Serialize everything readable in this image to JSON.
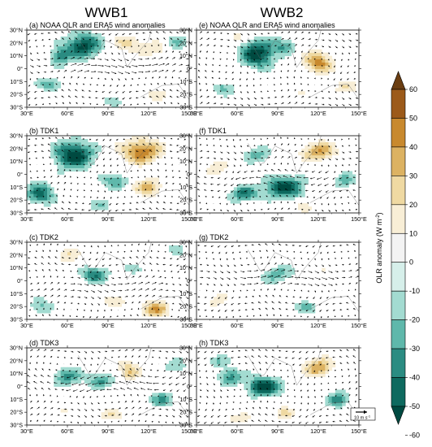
{
  "figure": {
    "column_titles": [
      "WWB1",
      "WWB2"
    ],
    "colorbar": {
      "title": "OLR anomaly (W m",
      "title_sup": "-2",
      "title_end": ")",
      "levels": [
        60,
        50,
        40,
        30,
        20,
        10,
        0,
        -10,
        -20,
        -30,
        -40,
        -50,
        -60
      ],
      "colors": [
        "#6b3e12",
        "#9c5a1a",
        "#c8892e",
        "#dcb262",
        "#efd9a2",
        "#f8eed6",
        "#f3f3f3",
        "#d6efea",
        "#a3dbd1",
        "#5fb8ab",
        "#2b8c82",
        "#0e6a5f",
        "#004a41"
      ]
    },
    "reference_vector": {
      "label": "10 m s"
    },
    "axes": {
      "x_ticks": [
        "30°E",
        "60°E",
        "90°E",
        "120°E",
        "150°E"
      ],
      "y_ticks": [
        "30°N",
        "20°N",
        "10°N",
        "0°",
        "10°S",
        "20°S",
        "30°S"
      ]
    }
  },
  "chart_data": [
    {
      "type": "heatmap",
      "panel": "a",
      "title": "(a) NOAA OLR and ERA5 wind anomalies",
      "xlim": [
        30,
        150
      ],
      "ylim": [
        -30,
        30
      ],
      "blobs": [
        [
          72,
          18,
          12,
          9,
          -55
        ],
        [
          55,
          10,
          8,
          7,
          -35
        ],
        [
          105,
          20,
          10,
          6,
          25
        ],
        [
          125,
          15,
          10,
          6,
          20
        ],
        [
          48,
          -12,
          9,
          5,
          -30
        ],
        [
          125,
          -20,
          8,
          5,
          15
        ],
        [
          95,
          -25,
          8,
          4,
          -20
        ],
        [
          140,
          20,
          8,
          6,
          -20
        ]
      ]
    },
    {
      "type": "heatmap",
      "panel": "b",
      "title": "(b) TDK1",
      "xlim": [
        30,
        150
      ],
      "ylim": [
        -30,
        30
      ],
      "blobs": [
        [
          65,
          15,
          14,
          10,
          -60
        ],
        [
          40,
          -15,
          10,
          8,
          -45
        ],
        [
          115,
          18,
          14,
          9,
          50
        ],
        [
          95,
          -5,
          10,
          6,
          -30
        ],
        [
          120,
          -10,
          10,
          6,
          35
        ],
        [
          85,
          -25,
          8,
          5,
          -20
        ],
        [
          140,
          10,
          8,
          6,
          -15
        ]
      ]
    },
    {
      "type": "heatmap",
      "panel": "c",
      "title": "(c) TDK2",
      "xlim": [
        30,
        150
      ],
      "ylim": [
        -30,
        30
      ],
      "blobs": [
        [
          80,
          5,
          10,
          6,
          -40
        ],
        [
          125,
          -22,
          10,
          6,
          40
        ],
        [
          40,
          -20,
          8,
          6,
          -25
        ],
        [
          60,
          20,
          8,
          6,
          20
        ],
        [
          110,
          10,
          8,
          5,
          -20
        ],
        [
          95,
          -15,
          8,
          5,
          20
        ],
        [
          140,
          25,
          6,
          5,
          -15
        ]
      ]
    },
    {
      "type": "heatmap",
      "panel": "d",
      "title": "(d) TDK3",
      "xlim": [
        30,
        150
      ],
      "ylim": [
        -30,
        30
      ],
      "blobs": [
        [
          60,
          8,
          10,
          7,
          -35
        ],
        [
          85,
          5,
          10,
          6,
          -30
        ],
        [
          105,
          12,
          8,
          7,
          30
        ],
        [
          130,
          -10,
          9,
          6,
          -30
        ],
        [
          55,
          -20,
          8,
          5,
          15
        ],
        [
          140,
          15,
          8,
          6,
          -20
        ],
        [
          90,
          -22,
          9,
          5,
          20
        ]
      ]
    },
    {
      "type": "heatmap",
      "panel": "e",
      "title": "(e) NOAA OLR and ERA5 wind anomalies",
      "xlim": [
        30,
        150
      ],
      "ylim": [
        -30,
        30
      ],
      "blobs": [
        [
          75,
          12,
          12,
          10,
          -60
        ],
        [
          95,
          18,
          8,
          6,
          -30
        ],
        [
          120,
          5,
          10,
          8,
          45
        ],
        [
          140,
          -15,
          8,
          5,
          20
        ],
        [
          50,
          -15,
          8,
          5,
          -25
        ],
        [
          110,
          -20,
          8,
          5,
          15
        ],
        [
          60,
          25,
          8,
          5,
          15
        ]
      ]
    },
    {
      "type": "heatmap",
      "panel": "f",
      "title": "(f) TDK1",
      "xlim": [
        30,
        150
      ],
      "ylim": [
        -30,
        30
      ],
      "blobs": [
        [
          95,
          -10,
          14,
          8,
          -55
        ],
        [
          65,
          -15,
          10,
          6,
          -40
        ],
        [
          120,
          18,
          12,
          7,
          40
        ],
        [
          75,
          15,
          10,
          6,
          -25
        ],
        [
          140,
          -5,
          8,
          6,
          -25
        ],
        [
          45,
          5,
          8,
          6,
          20
        ],
        [
          110,
          -25,
          8,
          4,
          20
        ]
      ]
    },
    {
      "type": "heatmap",
      "panel": "g",
      "title": "(g) TDK2",
      "xlim": [
        30,
        150
      ],
      "ylim": [
        -30,
        30
      ],
      "blobs": [
        [
          90,
          5,
          12,
          7,
          -25
        ],
        [
          45,
          -15,
          8,
          6,
          15
        ],
        [
          125,
          10,
          8,
          6,
          15
        ],
        [
          110,
          -20,
          10,
          5,
          -20
        ],
        [
          65,
          -22,
          8,
          4,
          -15
        ],
        [
          140,
          25,
          6,
          4,
          10
        ]
      ]
    },
    {
      "type": "heatmap",
      "panel": "h",
      "title": "(h) TDK3",
      "xlim": [
        30,
        150
      ],
      "ylim": [
        -30,
        30
      ],
      "blobs": [
        [
          80,
          0,
          12,
          7,
          -60
        ],
        [
          120,
          15,
          10,
          7,
          40
        ],
        [
          55,
          8,
          9,
          6,
          -35
        ],
        [
          135,
          -10,
          8,
          6,
          -35
        ],
        [
          95,
          -20,
          8,
          5,
          20
        ],
        [
          60,
          -25,
          8,
          4,
          20
        ],
        [
          45,
          20,
          8,
          5,
          -20
        ]
      ]
    }
  ]
}
